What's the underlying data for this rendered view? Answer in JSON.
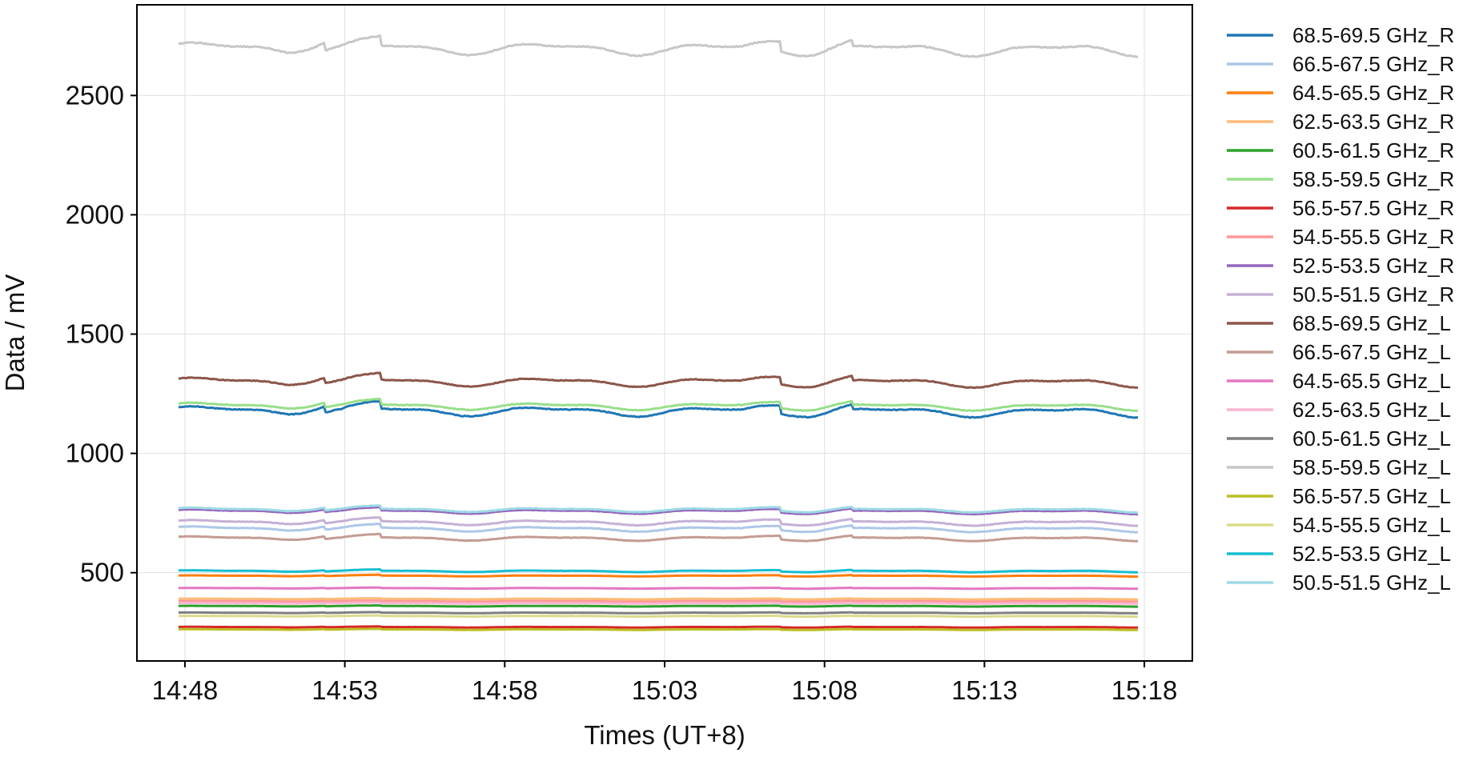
{
  "chart_data": {
    "type": "line",
    "title": "",
    "xlabel": "Times (UT+8)",
    "ylabel": "Data / mV",
    "x_ticks": [
      "14:48",
      "14:53",
      "14:58",
      "15:03",
      "15:08",
      "15:13",
      "15:18"
    ],
    "x_range": [
      "14:46:30",
      "15:19:30"
    ],
    "y_ticks": [
      500,
      1000,
      1500,
      2000,
      2500
    ],
    "ylim": [
      130,
      2880
    ],
    "grid": true,
    "legend_position": "right, outside plot",
    "series": [
      {
        "name": "68.5-69.5 GHz_R",
        "color": "#1f77b4",
        "base": 1180,
        "amp": 28
      },
      {
        "name": "66.5-67.5 GHz_R",
        "color": "#aec7e8",
        "base": 685,
        "amp": 14
      },
      {
        "name": "64.5-65.5 GHz_R",
        "color": "#ff7f0e",
        "base": 487,
        "amp": 3
      },
      {
        "name": "62.5-63.5 GHz_R",
        "color": "#ffbb78",
        "base": 390,
        "amp": 2
      },
      {
        "name": "60.5-61.5 GHz_R",
        "color": "#2ca02c",
        "base": 360,
        "amp": 2
      },
      {
        "name": "58.5-59.5 GHz_R",
        "color": "#98df8a",
        "base": 1200,
        "amp": 20
      },
      {
        "name": "56.5-57.5 GHz_R",
        "color": "#d62728",
        "base": 272,
        "amp": 2
      },
      {
        "name": "54.5-55.5 GHz_R",
        "color": "#ff9896",
        "base": 380,
        "amp": 2
      },
      {
        "name": "52.5-53.5 GHz_R",
        "color": "#9467bd",
        "base": 758,
        "amp": 12
      },
      {
        "name": "50.5-51.5 GHz_R",
        "color": "#c5b0d5",
        "base": 712,
        "amp": 14
      },
      {
        "name": "68.5-69.5 GHz_L",
        "color": "#8c564b",
        "base": 1302,
        "amp": 25
      },
      {
        "name": "66.5-67.5 GHz_L",
        "color": "#c49c94",
        "base": 645,
        "amp": 12
      },
      {
        "name": "64.5-65.5 GHz_L",
        "color": "#e377c2",
        "base": 435,
        "amp": 2
      },
      {
        "name": "62.5-63.5 GHz_L",
        "color": "#f7b6d2",
        "base": 372,
        "amp": 2
      },
      {
        "name": "60.5-61.5 GHz_L",
        "color": "#7f7f7f",
        "base": 332,
        "amp": 2
      },
      {
        "name": "58.5-59.5 GHz_L",
        "color": "#c7c7c7",
        "base": 2700,
        "amp": 35
      },
      {
        "name": "56.5-57.5 GHz_L",
        "color": "#bcbd22",
        "base": 262,
        "amp": 2
      },
      {
        "name": "54.5-55.5 GHz_L",
        "color": "#dbdb8d",
        "base": 318,
        "amp": 2
      },
      {
        "name": "52.5-53.5 GHz_L",
        "color": "#17becf",
        "base": 507,
        "amp": 5
      },
      {
        "name": "50.5-51.5 GHz_L",
        "color": "#9edae5",
        "base": 765,
        "amp": 12
      }
    ]
  }
}
